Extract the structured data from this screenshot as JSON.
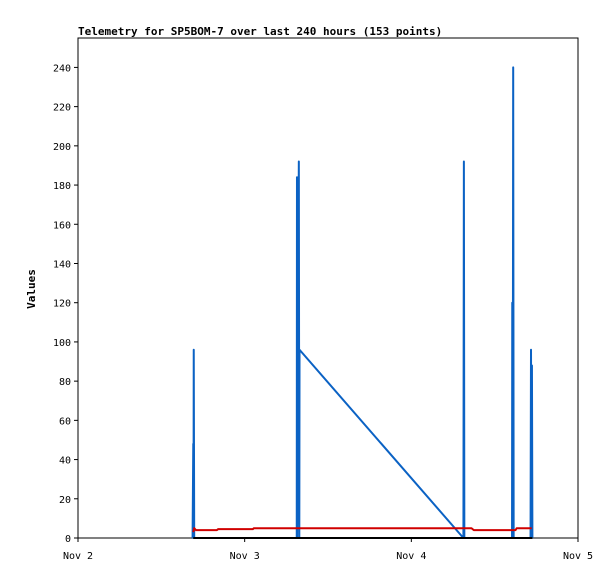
{
  "chart_data": {
    "type": "line",
    "title": "Telemetry for SP5BOM-7 over last 240 hours (153 points)",
    "ylabel": "Values",
    "xlabel": "",
    "x_domain": [
      "Nov 2",
      "Nov 5"
    ],
    "ylim": [
      0,
      255
    ],
    "x_ticks": [
      "Nov 2",
      "Nov 3",
      "Nov 4",
      "Nov 5"
    ],
    "y_ticks": [
      0,
      20,
      40,
      60,
      80,
      100,
      120,
      140,
      160,
      180,
      200,
      220,
      240
    ],
    "grid": false,
    "series": [
      {
        "color": "#0b62c4",
        "points": [
          [
            "Nov 2 16:30",
            0
          ],
          [
            "Nov 2 16:36",
            48
          ],
          [
            "Nov 2 16:38",
            0
          ],
          [
            "Nov 2 16:40",
            96
          ],
          [
            "Nov 2 16:44",
            0
          ],
          [
            "Nov 3 07:30",
            0
          ],
          [
            "Nov 3 07:32",
            184
          ],
          [
            "Nov 3 07:34",
            0
          ],
          [
            "Nov 3 07:48",
            192
          ],
          [
            "Nov 3 07:52",
            0
          ],
          [
            "Nov 3 07:54",
            96
          ],
          [
            "Nov 4 07:30",
            0
          ],
          [
            "Nov 4 07:34",
            192
          ],
          [
            "Nov 4 07:38",
            0
          ],
          [
            "Nov 4 14:30",
            0
          ],
          [
            "Nov 4 14:32",
            120
          ],
          [
            "Nov 4 14:36",
            0
          ],
          [
            "Nov 4 14:40",
            240
          ],
          [
            "Nov 4 14:44",
            0
          ],
          [
            "Nov 4 17:10",
            0
          ],
          [
            "Nov 4 17:14",
            96
          ],
          [
            "Nov 4 17:18",
            0
          ],
          [
            "Nov 4 17:22",
            88
          ],
          [
            "Nov 4 17:26",
            0
          ]
        ]
      },
      {
        "color": "#d00000",
        "points": [
          [
            "Nov 2 16:36",
            3
          ],
          [
            "Nov 2 16:44",
            5
          ],
          [
            "Nov 2 17:00",
            4
          ],
          [
            "Nov 2 20:00",
            4
          ],
          [
            "Nov 2 20:10",
            4.5
          ],
          [
            "Nov 3 01:10",
            4.5
          ],
          [
            "Nov 3 01:20",
            5
          ],
          [
            "Nov 3 07:30",
            5
          ],
          [
            "Nov 3 07:50",
            5
          ],
          [
            "Nov 4 08:40",
            5
          ],
          [
            "Nov 4 09:00",
            4
          ],
          [
            "Nov 4 15:00",
            4
          ],
          [
            "Nov 4 15:10",
            5
          ],
          [
            "Nov 4 17:20",
            5
          ]
        ]
      },
      {
        "color": "#000000",
        "points": [
          [
            "Nov 2 16:36",
            0
          ],
          [
            "Nov 4 17:26",
            0
          ]
        ]
      }
    ]
  }
}
